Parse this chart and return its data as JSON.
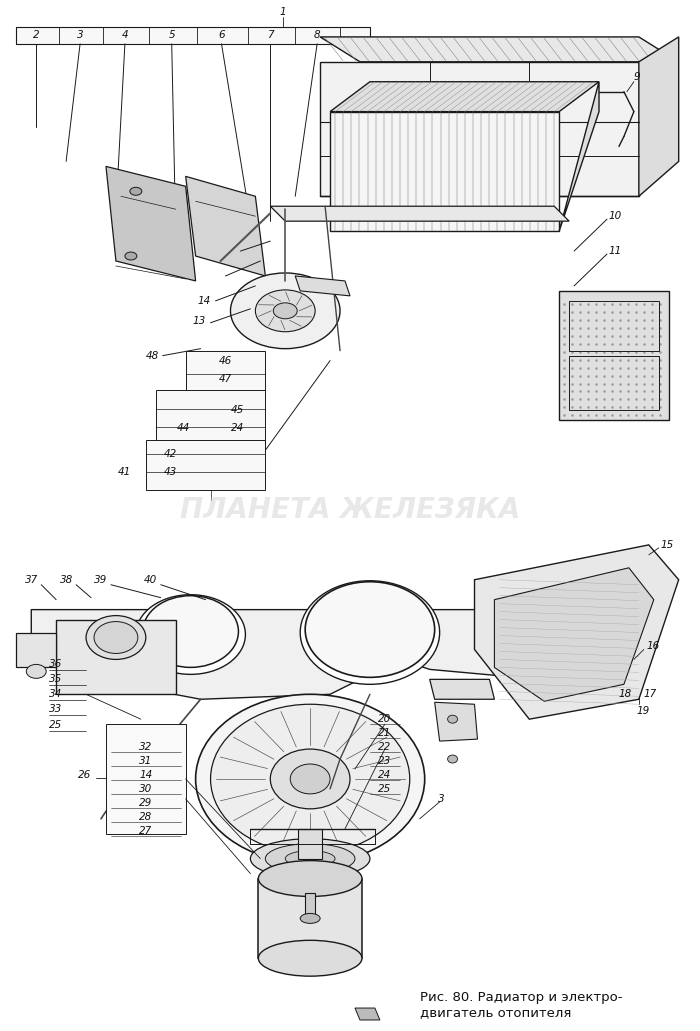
{
  "caption_fig": "Рис. 80. Радиатор и электро-\nдвигатель отопителя",
  "watermark": "ПЛАНЕТА ЖЕЛЕЗЯКА",
  "bg_color": "#ffffff",
  "fig_width": 7.0,
  "fig_height": 10.31,
  "dpi": 100,
  "line_color": "#1a1a1a",
  "label_fontsize": 7.5,
  "label_color": "#111111",
  "watermark_color": "#cccccc",
  "watermark_alpha": 0.45,
  "watermark_fontsize": 20
}
